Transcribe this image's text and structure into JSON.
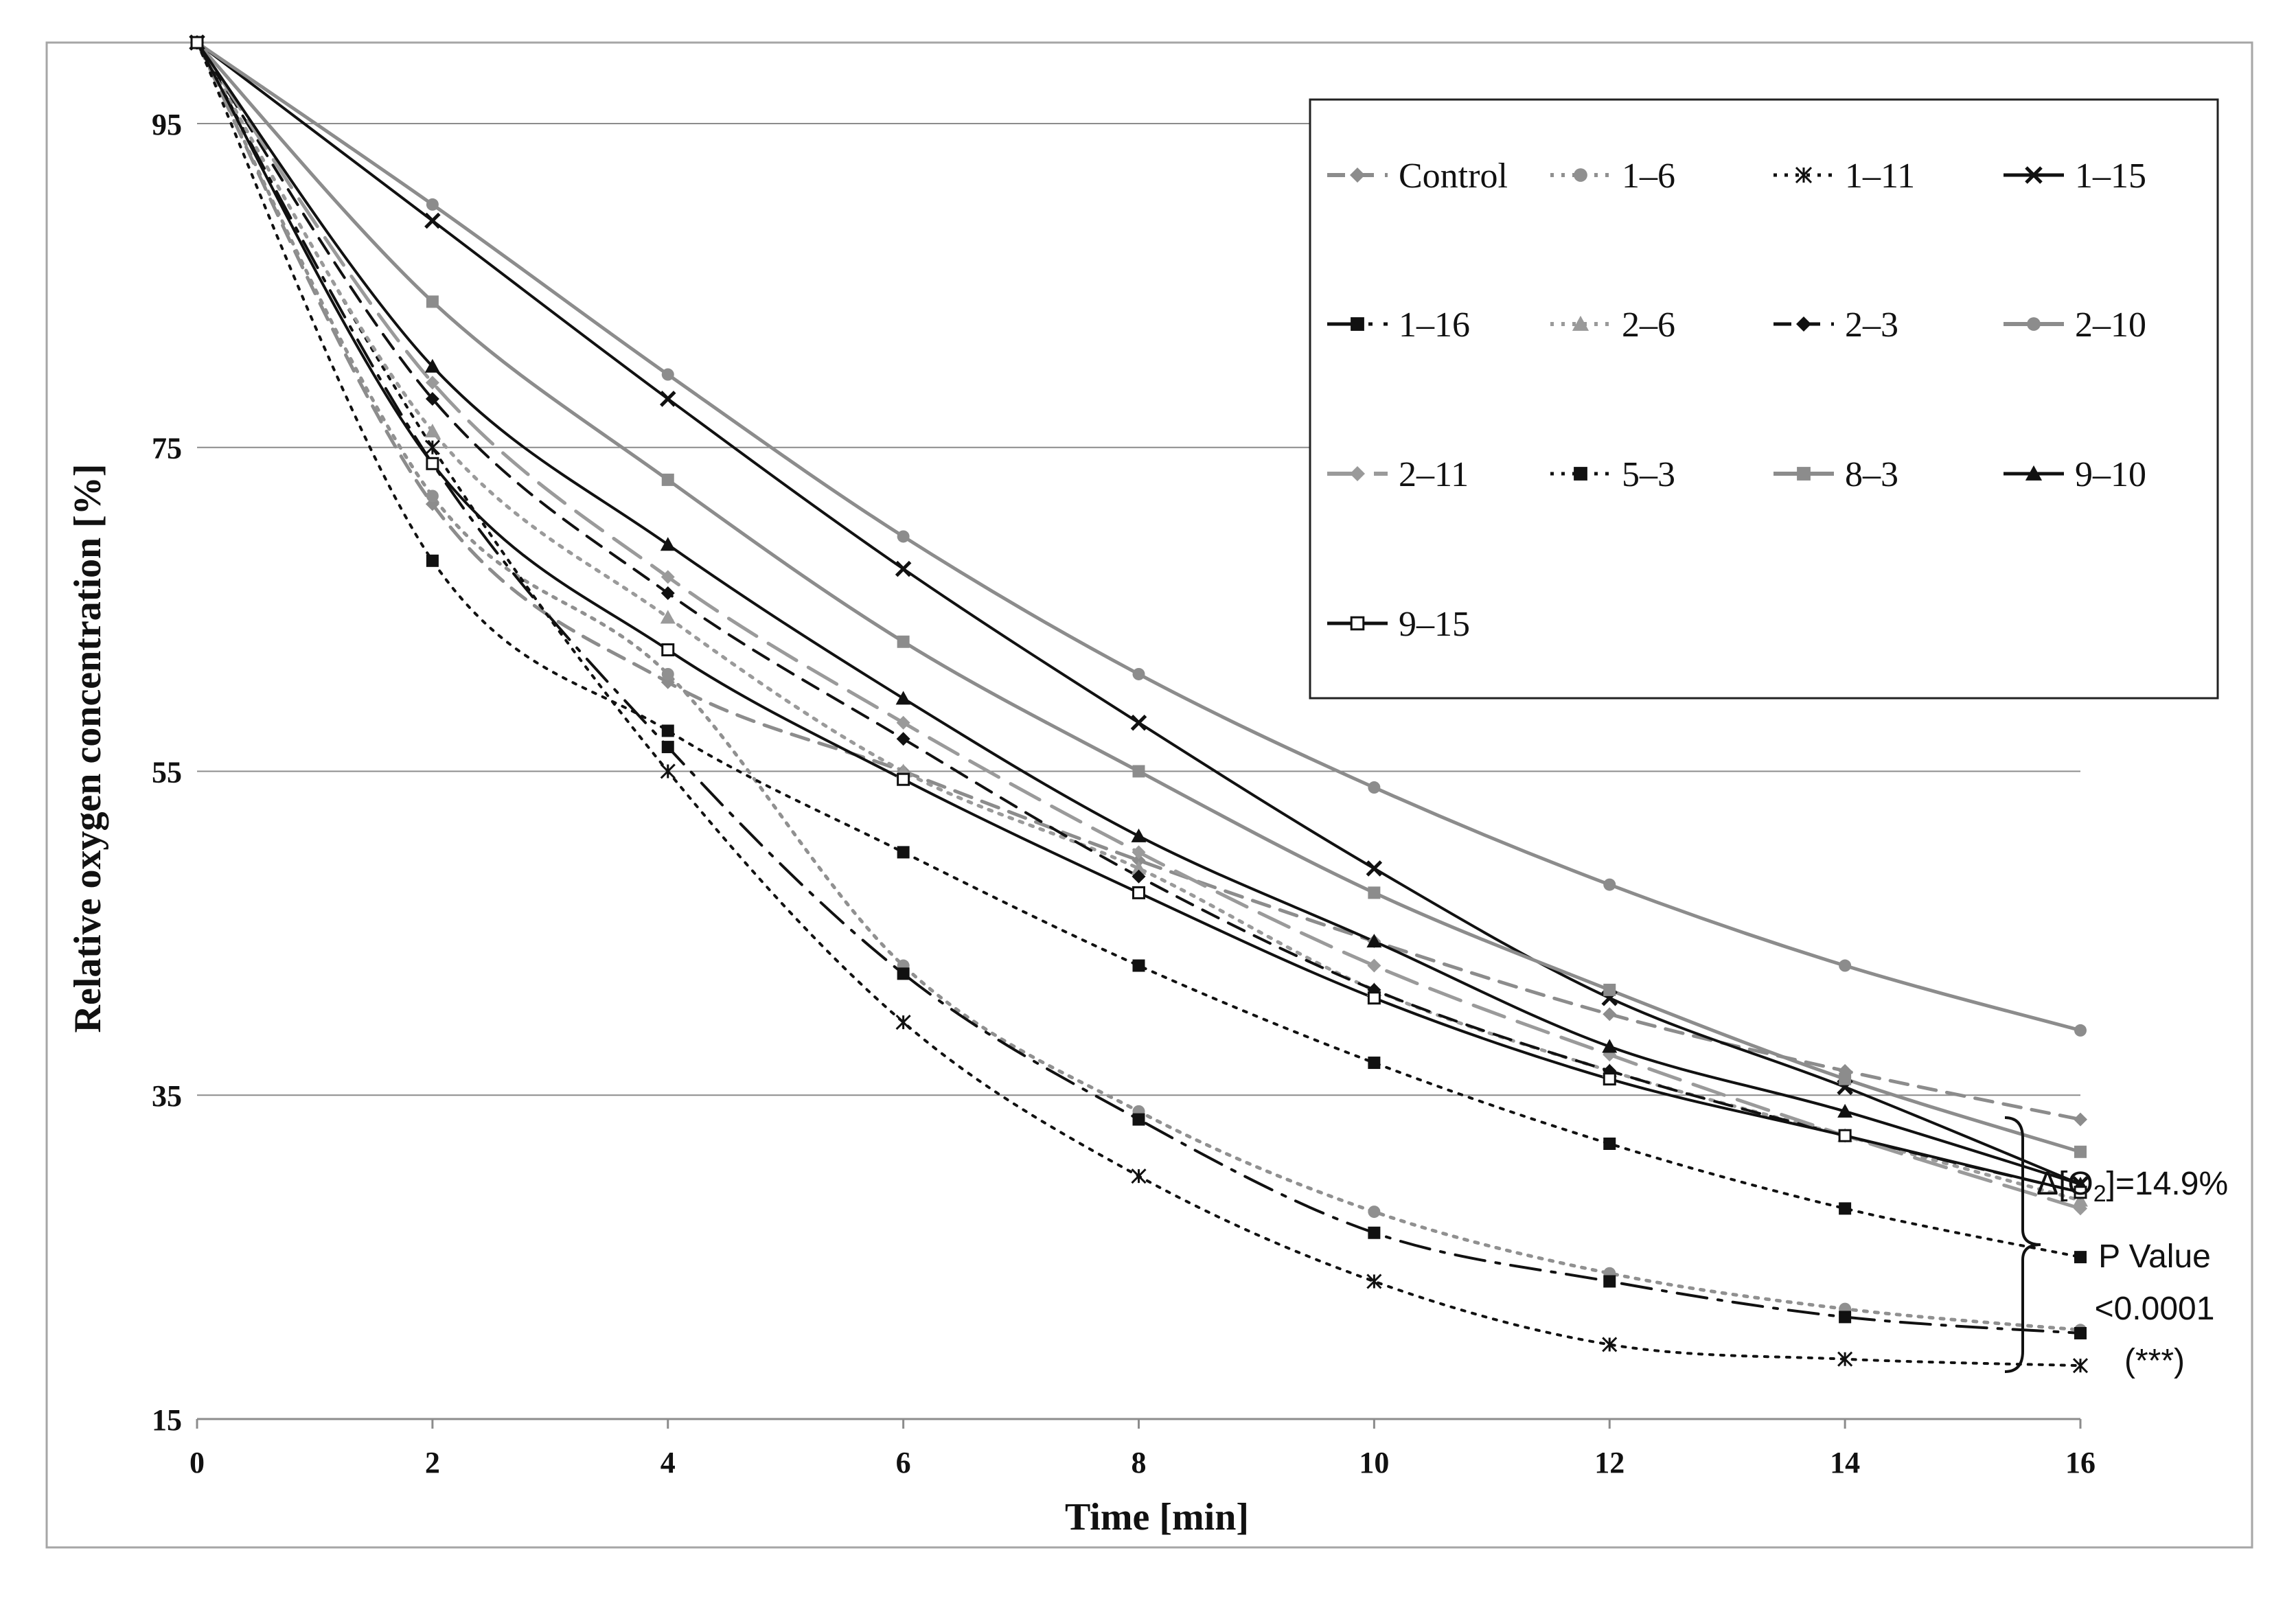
{
  "chart_data": {
    "type": "line",
    "title": "",
    "xlabel": "Time [min]",
    "ylabel": "Relative oxygen concentration [%]",
    "xlim": [
      0,
      16
    ],
    "ylim": [
      15,
      100
    ],
    "xticks": [
      0,
      2,
      4,
      6,
      8,
      10,
      12,
      14,
      16
    ],
    "yticks": [
      15,
      35,
      55,
      75,
      95
    ],
    "grid": true,
    "legend": "top-right",
    "x": [
      0,
      2,
      4,
      6,
      8,
      10,
      12,
      14,
      16
    ],
    "series": [
      {
        "name": "Control",
        "color": "#8c8c8c",
        "dash": "dash",
        "marker": "diamond",
        "values": [
          100,
          71.5,
          60.5,
          55,
          49.5,
          44.5,
          40,
          36.5,
          33.5
        ]
      },
      {
        "name": "1–6",
        "color": "#909090",
        "dash": "dot",
        "marker": "circle",
        "values": [
          100,
          72,
          61,
          43,
          34,
          27.8,
          24,
          21.8,
          20.5
        ]
      },
      {
        "name": "1–11",
        "color": "#111111",
        "dash": "dot",
        "marker": "star",
        "values": [
          100,
          75,
          55,
          39.5,
          30,
          23.5,
          19.6,
          18.7,
          18.3
        ]
      },
      {
        "name": "1–15",
        "color": "#111111",
        "dash": "solid",
        "marker": "x",
        "values": [
          100,
          89,
          78,
          67.5,
          58,
          49,
          41,
          35.5,
          29.5
        ]
      },
      {
        "name": "1–16",
        "color": "#111111",
        "dash": "dashdot",
        "marker": "square",
        "values": [
          100,
          74,
          56.5,
          42.5,
          33.5,
          26.5,
          23.5,
          21.3,
          20.3
        ]
      },
      {
        "name": "2–6",
        "color": "#9a9a9a",
        "dash": "dot",
        "marker": "triangle",
        "values": [
          100,
          76,
          64.5,
          55,
          49,
          41.5,
          36.5,
          32.5,
          28.5
        ]
      },
      {
        "name": "2–3",
        "color": "#111111",
        "dash": "dash",
        "marker": "diamond",
        "values": [
          100,
          78,
          66,
          57,
          48.5,
          41.5,
          36.5,
          32.5,
          29
        ]
      },
      {
        "name": "2–10",
        "color": "#8c8c8c",
        "dash": "solid",
        "marker": "circle",
        "values": [
          100,
          90,
          79.5,
          69.5,
          61,
          54,
          48,
          43,
          39
        ]
      },
      {
        "name": "2–11",
        "color": "#9a9a9a",
        "dash": "longdash",
        "marker": "diamond",
        "values": [
          100,
          79,
          67,
          58,
          50,
          43,
          37.5,
          32.5,
          28
        ]
      },
      {
        "name": "5–3",
        "color": "#111111",
        "dash": "dot",
        "marker": "square",
        "values": [
          100,
          68,
          57.5,
          50,
          43,
          37,
          32,
          28,
          25
        ]
      },
      {
        "name": "8–3",
        "color": "#8c8c8c",
        "dash": "solid",
        "marker": "square",
        "values": [
          100,
          84,
          73,
          63,
          55,
          47.5,
          41.5,
          36,
          31.5
        ]
      },
      {
        "name": "9–10",
        "color": "#111111",
        "dash": "solid",
        "marker": "triangle",
        "values": [
          100,
          80,
          69,
          59.5,
          51,
          44.5,
          38,
          34,
          29.5
        ]
      },
      {
        "name": "9–15",
        "color": "#111111",
        "dash": "solid",
        "marker": "opensquare",
        "values": [
          100,
          74,
          62.5,
          54.5,
          47.5,
          41,
          36,
          32.5,
          29
        ]
      }
    ],
    "annotations": {
      "delta_prefix": "Δ[O",
      "delta_sub": "2",
      "delta_suffix": "]=14.9%",
      "p_line1": "P Value",
      "p_line2": "<0.0001",
      "p_line3": "(***)"
    }
  }
}
